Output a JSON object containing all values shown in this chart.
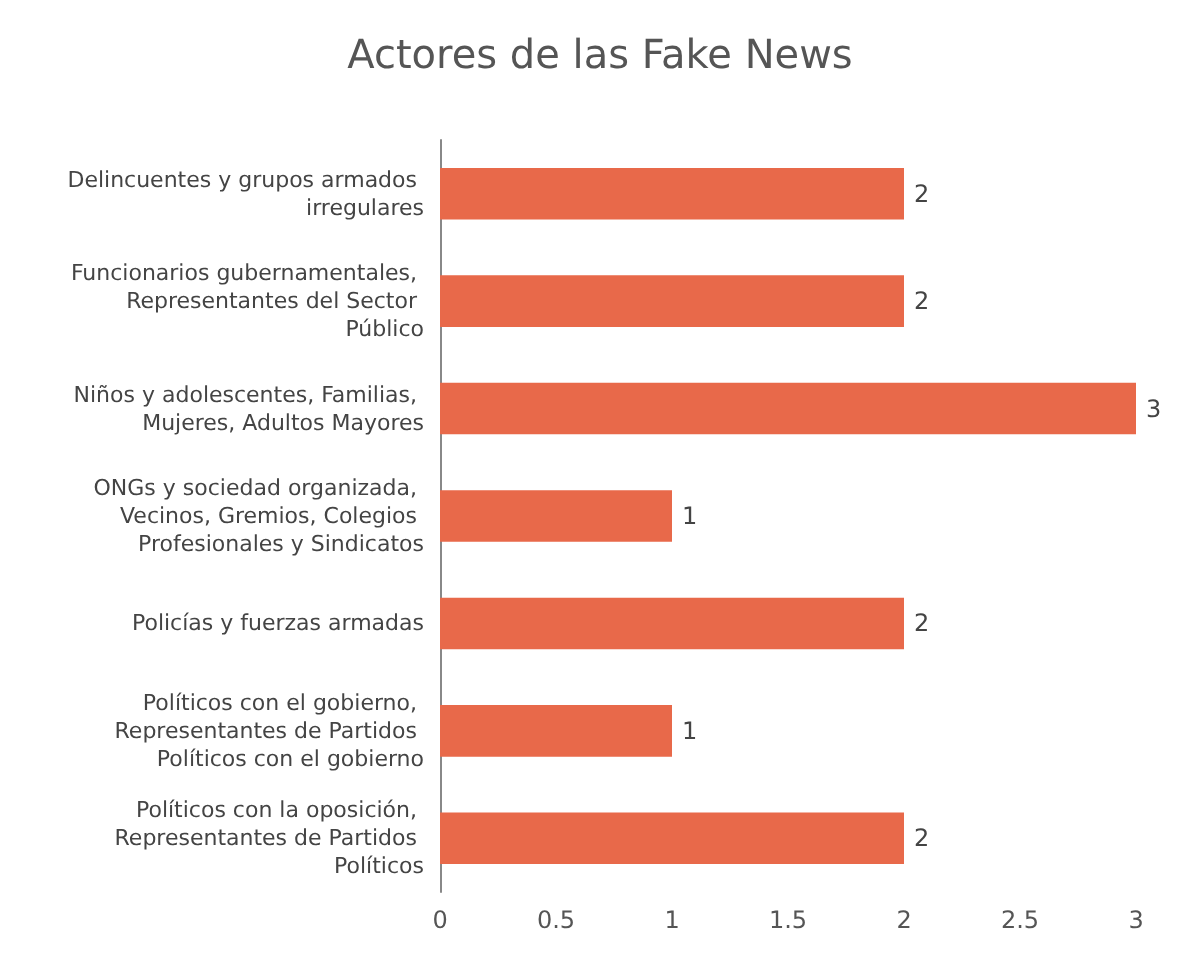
{
  "chart_data": {
    "type": "bar",
    "orientation": "horizontal",
    "title": "Actores de las Fake News",
    "categories": [
      "Delincuentes y grupos armados irregulares",
      "Funcionarios gubernamentales, Representantes del Sector Público",
      "Niños y adolescentes, Familias, Mujeres, Adultos Mayores",
      "ONGs y sociedad organizada, Vecinos, Gremios, Colegios Profesionales y Sindicatos",
      "Policías y fuerzas armadas",
      "Políticos con el gobierno, Representantes de Partidos Políticos con el gobierno",
      "Políticos con la oposición, Representantes de Partidos Políticos"
    ],
    "values": [
      2,
      2,
      3,
      1,
      2,
      1,
      2
    ],
    "color": "#e8694a",
    "xlim": [
      0,
      3
    ],
    "xticks": [
      0,
      0.5,
      1,
      1.5,
      2,
      2.5,
      3
    ],
    "data_labels": true
  }
}
